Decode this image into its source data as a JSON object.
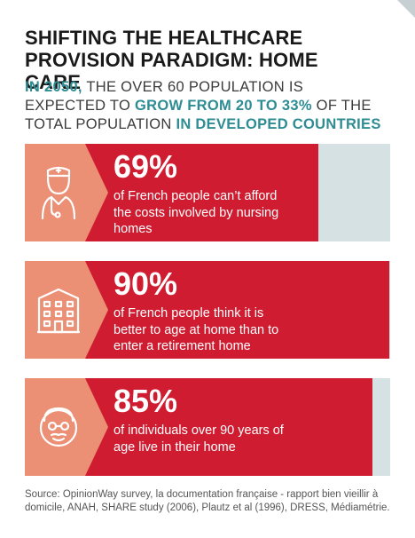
{
  "title": "SHIFTING THE HEALTHCARE PROVISION PARADIGM: HOME CARE",
  "subtitle": {
    "p1": "IN 2050,",
    "p2": " THE OVER 60 POPULATION IS EXPECTED TO ",
    "p3": "GROW FROM 20 TO 33%",
    "p4": " OF THE TOTAL POPULATION ",
    "p5": "IN DEVELOPED COUNTRIES"
  },
  "stats": [
    {
      "percent": "69%",
      "value": 69,
      "description": "of French people can’t afford the costs involved by nursing homes",
      "icon": "nurse-icon"
    },
    {
      "percent": "90%",
      "value": 90,
      "description": "of French people think it is better to age at home than to enter a retirement home",
      "icon": "building-icon"
    },
    {
      "percent": "85%",
      "value": 85,
      "description": "of individuals over 90 years of age live in their home",
      "icon": "elderly-person-icon"
    }
  ],
  "source": "Source: OpinionWay survey, la documentation française - rapport bien vieillir à domicile, ANAH, SHARE study (2006), Plautz et al (1996), DRESS, Médiamétrie.",
  "colors": {
    "accent_teal": "#2e8c93",
    "bar_red": "#cf1c30",
    "icon_salmon": "#eb8f75",
    "track_gray": "#d6e1e4"
  }
}
